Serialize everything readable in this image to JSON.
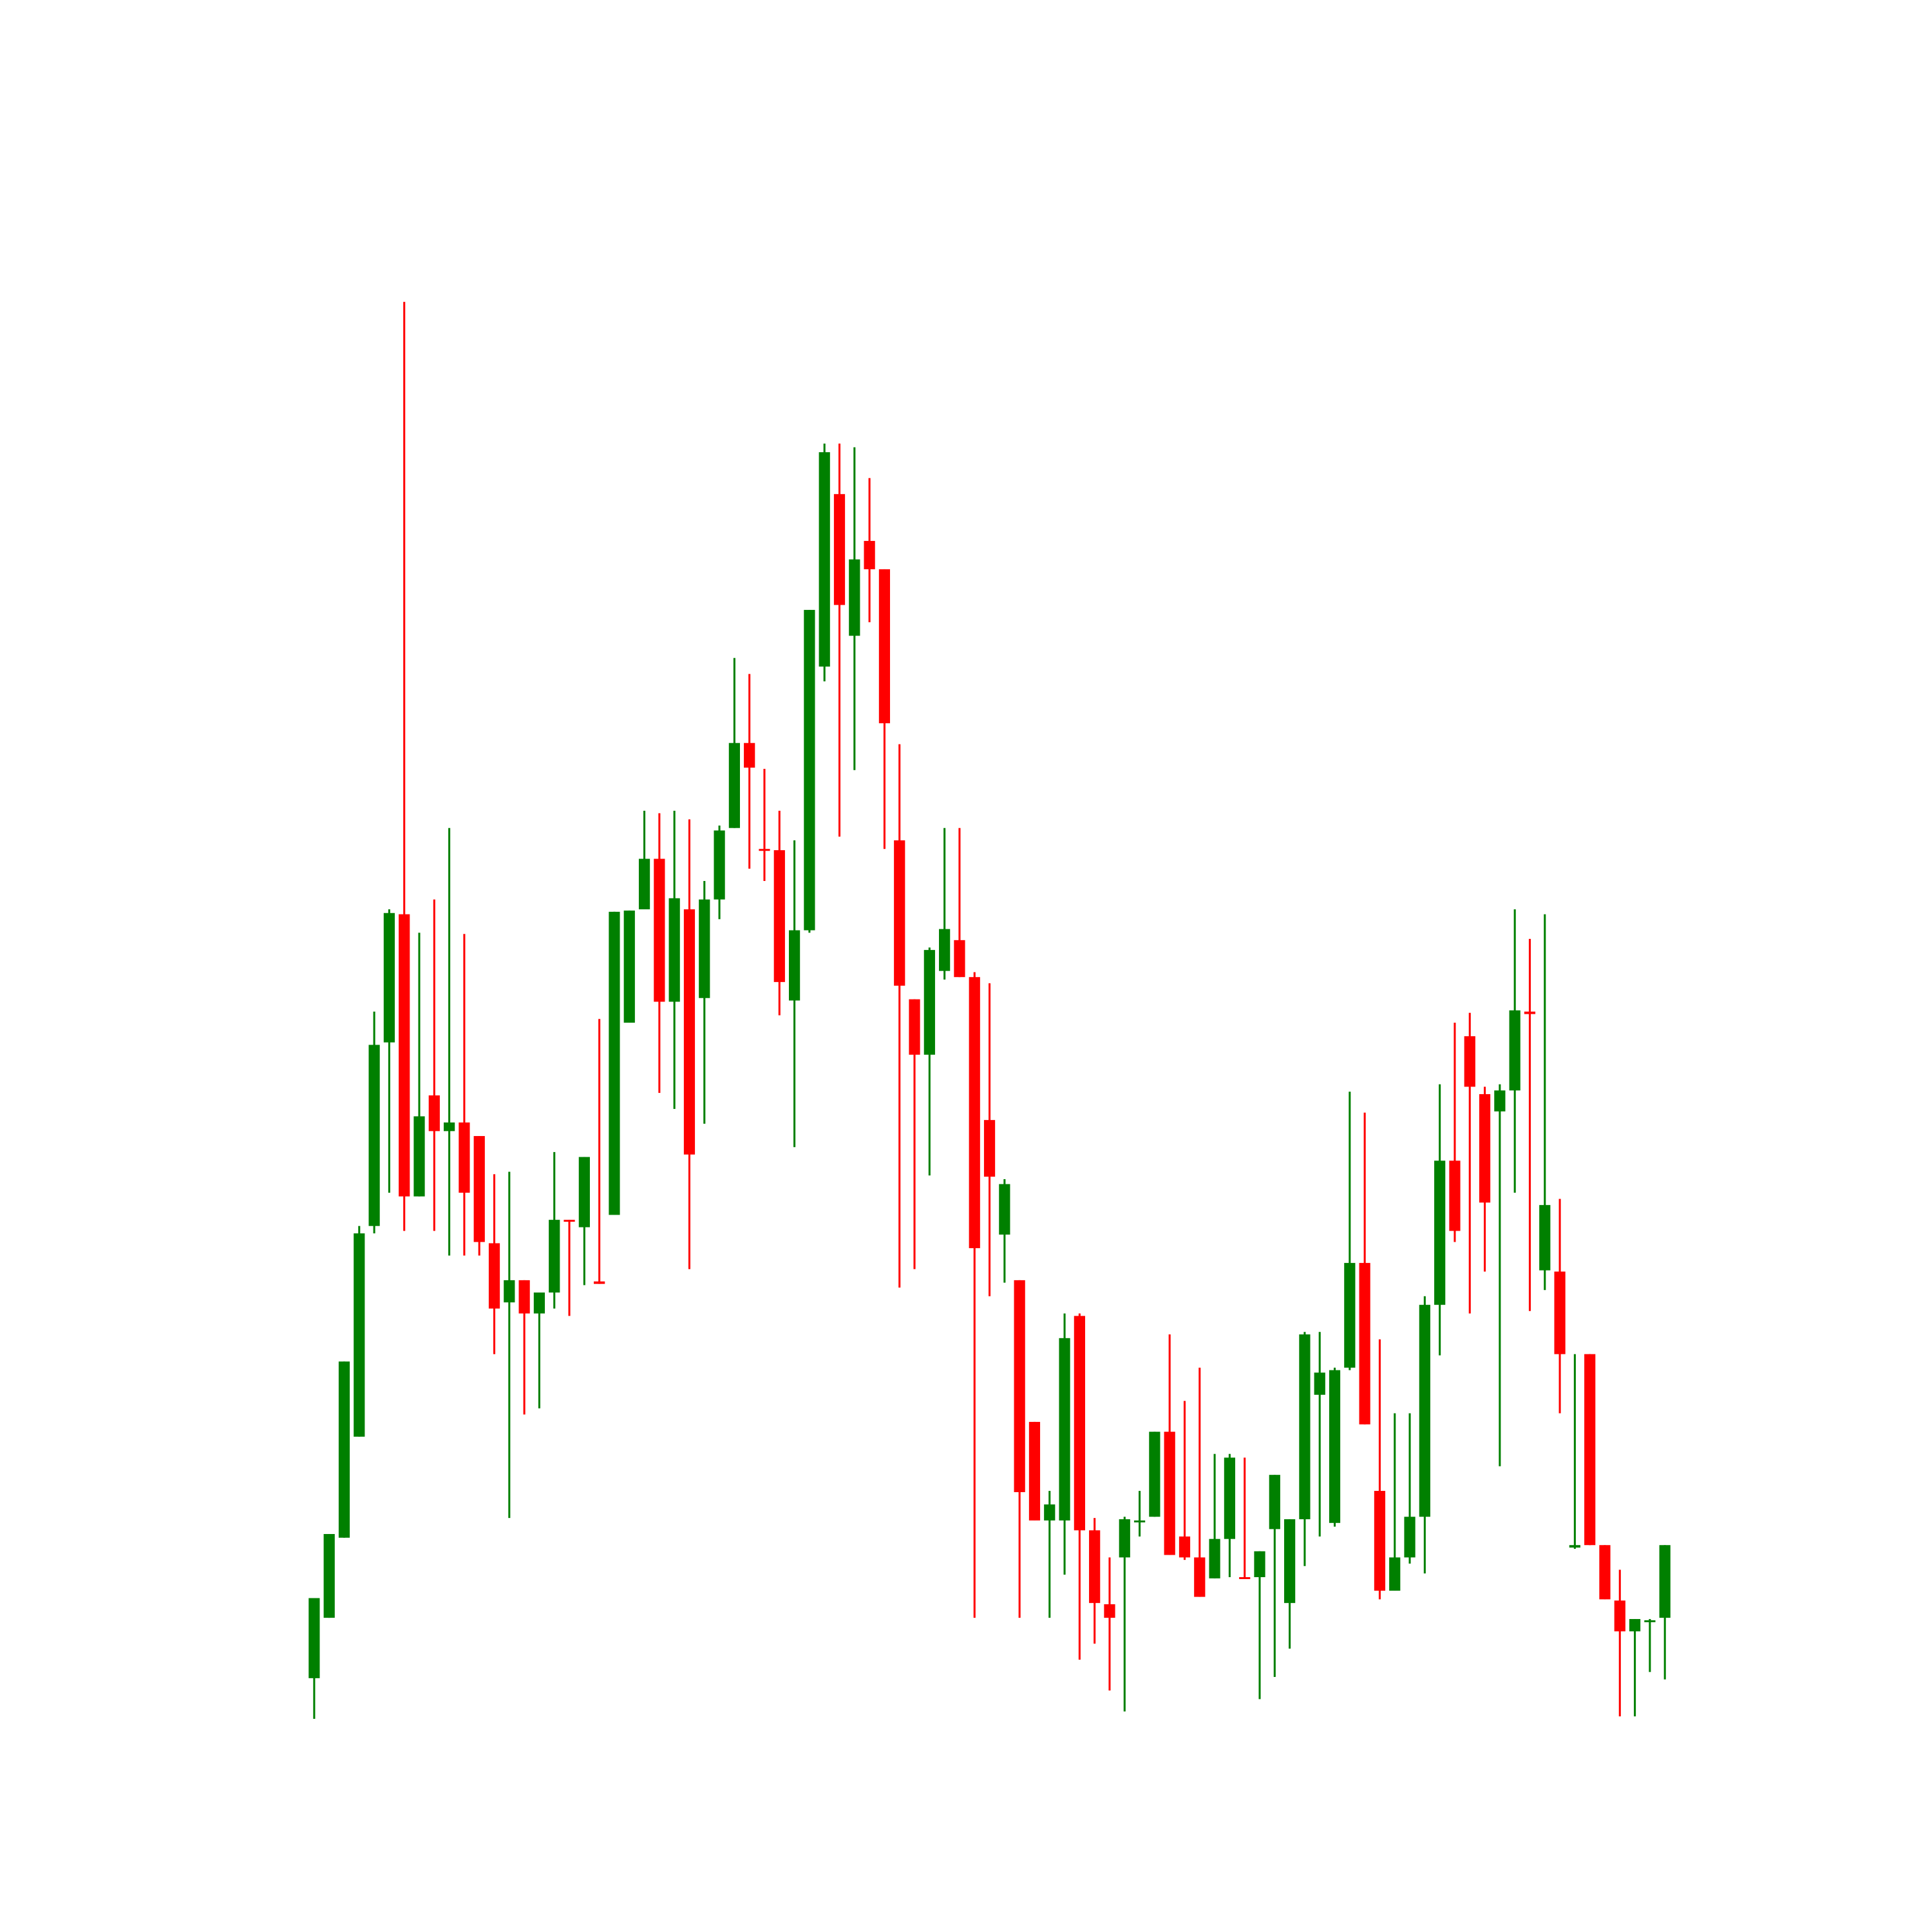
{
  "chart_data": {
    "type": "candlestick",
    "up_color": "#008000",
    "down_color": "#ff0000",
    "ylim": [
      0,
      150
    ],
    "open": [
      13.8,
      18.7,
      25.2,
      33.4,
      50.5,
      65.4,
      75.8,
      52.9,
      61.1,
      58.2,
      58.9,
      57.8,
      49.1,
      44.3,
      46.1,
      43.4,
      45.1,
      51.0,
      50.4,
      46.0,
      51.4,
      67.0,
      76.2,
      80.3,
      68.7,
      76.2,
      69.0,
      77.0,
      82.8,
      89.7,
      81.1,
      81.0,
      68.8,
      74.5,
      95.9,
      109.9,
      98.4,
      106.1,
      103.8,
      81.8,
      68.9,
      64.4,
      71.2,
      73.7,
      70.7,
      59.1,
      49.8,
      46.1,
      34.6,
      26.6,
      26.6,
      43.2,
      25.8,
      19.8,
      23.6,
      26.5,
      26.9,
      33.8,
      25.3,
      23.6,
      21.9,
      25.1,
      22.0,
      22.0,
      25.9,
      19.9,
      26.7,
      36.8,
      26.4,
      39.0,
      47.5,
      29.0,
      20.9,
      23.6,
      26.9,
      44.1,
      55.8,
      65.9,
      61.2,
      59.8,
      61.5,
      67.9,
      46.9,
      46.8,
      24.4,
      40.1,
      24.6,
      20.1,
      17.6,
      18.4,
      18.7
    ],
    "high": [
      20.3,
      25.5,
      39.5,
      50.5,
      67.9,
      76.2,
      125.5,
      74.3,
      77.0,
      82.8,
      74.2,
      57.8,
      54.7,
      54.9,
      46.1,
      45.1,
      56.5,
      51.0,
      56.1,
      67.3,
      76.0,
      76.1,
      84.2,
      84.0,
      84.2,
      83.5,
      78.5,
      83.0,
      96.6,
      95.3,
      87.6,
      84.2,
      81.8,
      100.5,
      114.0,
      114.0,
      113.7,
      111.2,
      103.8,
      89.6,
      68.9,
      73.1,
      82.8,
      82.8,
      71.1,
      70.2,
      54.3,
      46.1,
      34.6,
      29.0,
      43.4,
      43.4,
      26.8,
      23.6,
      26.9,
      29.0,
      33.8,
      41.7,
      36.3,
      39.0,
      32.0,
      32.0,
      31.7,
      24.1,
      30.3,
      26.7,
      41.9,
      41.9,
      39.0,
      61.4,
      59.7,
      41.3,
      35.3,
      35.3,
      44.8,
      62.0,
      67.0,
      67.8,
      61.8,
      62.0,
      76.2,
      73.8,
      75.8,
      52.7,
      40.1,
      40.1,
      24.6,
      22.6,
      18.6,
      18.6,
      24.6
    ],
    "low": [
      10.5,
      18.7,
      25.2,
      33.4,
      49.9,
      53.2,
      50.1,
      52.9,
      50.1,
      48.1,
      48.1,
      48.1,
      40.1,
      26.8,
      35.2,
      35.7,
      43.8,
      43.2,
      45.7,
      45.8,
      51.4,
      67.0,
      76.2,
      61.3,
      60.0,
      47.0,
      58.8,
      75.4,
      82.8,
      79.5,
      78.5,
      67.6,
      56.9,
      74.3,
      94.7,
      82.1,
      87.5,
      99.5,
      81.1,
      45.5,
      47.0,
      54.6,
      70.5,
      70.7,
      18.7,
      44.8,
      45.9,
      18.7,
      26.6,
      18.7,
      22.2,
      15.3,
      16.6,
      12.8,
      11.1,
      25.3,
      26.9,
      23.8,
      23.4,
      20.4,
      21.9,
      22.0,
      21.9,
      12.1,
      13.9,
      16.2,
      22.9,
      25.3,
      26.1,
      38.8,
      34.4,
      20.2,
      20.9,
      23.1,
      22.3,
      40.0,
      49.2,
      43.4,
      46.8,
      31.0,
      53.2,
      43.6,
      45.3,
      35.3,
      24.3,
      24.6,
      20.2,
      10.7,
      10.7,
      14.3,
      13.7
    ],
    "close": [
      20.3,
      25.5,
      39.5,
      49.9,
      65.2,
      75.9,
      52.9,
      59.4,
      58.2,
      58.9,
      53.2,
      49.2,
      43.8,
      46.1,
      43.4,
      45.1,
      51.0,
      50.9,
      56.1,
      45.8,
      76.0,
      76.1,
      80.3,
      68.7,
      77.1,
      56.3,
      77.0,
      82.6,
      89.7,
      87.7,
      81.0,
      70.3,
      74.5,
      100.5,
      113.3,
      100.9,
      104.6,
      103.8,
      91.3,
      70.0,
      64.4,
      72.9,
      74.6,
      70.7,
      48.7,
      54.5,
      53.9,
      28.9,
      26.6,
      27.9,
      41.4,
      25.8,
      19.9,
      18.7,
      26.7,
      26.6,
      33.8,
      23.8,
      23.6,
      20.4,
      25.1,
      31.7,
      21.9,
      24.1,
      30.3,
      26.7,
      41.7,
      38.6,
      38.8,
      47.5,
      34.4,
      20.9,
      23.6,
      26.9,
      44.1,
      55.8,
      50.1,
      61.8,
      52.4,
      61.5,
      68.0,
      67.7,
      52.2,
      40.1,
      24.6,
      24.6,
      20.2,
      17.6,
      18.6,
      18.5,
      24.6
    ]
  }
}
